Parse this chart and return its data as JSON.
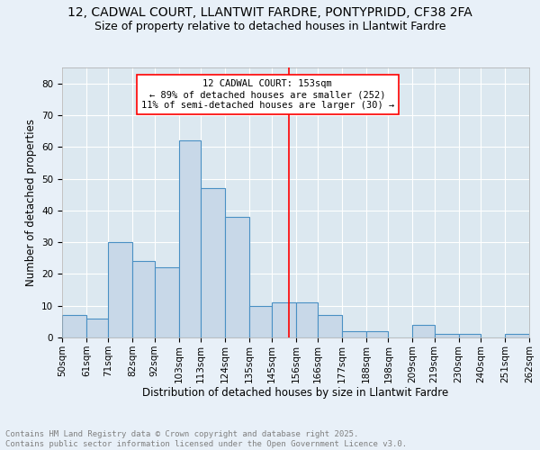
{
  "title_line1": "12, CADWAL COURT, LLANTWIT FARDRE, PONTYPRIDD, CF38 2FA",
  "title_line2": "Size of property relative to detached houses in Llantwit Fardre",
  "xlabel": "Distribution of detached houses by size in Llantwit Fardre",
  "ylabel": "Number of detached properties",
  "footer": "Contains HM Land Registry data © Crown copyright and database right 2025.\nContains public sector information licensed under the Open Government Licence v3.0.",
  "bin_labels": [
    "50sqm",
    "61sqm",
    "71sqm",
    "82sqm",
    "92sqm",
    "103sqm",
    "113sqm",
    "124sqm",
    "135sqm",
    "145sqm",
    "156sqm",
    "166sqm",
    "177sqm",
    "188sqm",
    "198sqm",
    "209sqm",
    "219sqm",
    "230sqm",
    "240sqm",
    "251sqm",
    "262sqm"
  ],
  "bin_edges": [
    50,
    61,
    71,
    82,
    92,
    103,
    113,
    124,
    135,
    145,
    156,
    166,
    177,
    188,
    198,
    209,
    219,
    230,
    240,
    251,
    262
  ],
  "bar_heights": [
    7,
    6,
    30,
    24,
    22,
    62,
    47,
    38,
    10,
    11,
    11,
    7,
    2,
    2,
    0,
    4,
    1,
    1,
    0,
    1
  ],
  "bar_color": "#c8d8e8",
  "bar_edge_color": "#4a90c4",
  "reference_line_x": 153,
  "reference_line_color": "red",
  "annotation_text": "12 CADWAL COURT: 153sqm\n← 89% of detached houses are smaller (252)\n11% of semi-detached houses are larger (30) →",
  "ylim": [
    0,
    85
  ],
  "yticks": [
    0,
    10,
    20,
    30,
    40,
    50,
    60,
    70,
    80
  ],
  "bg_color": "#dce8f0",
  "fig_bg_color": "#e8f0f8",
  "grid_color": "#ffffff",
  "title_fontsize": 10,
  "subtitle_fontsize": 9,
  "axis_label_fontsize": 8.5,
  "tick_fontsize": 7.5,
  "footer_fontsize": 6.5,
  "annotation_fontsize": 7.5
}
